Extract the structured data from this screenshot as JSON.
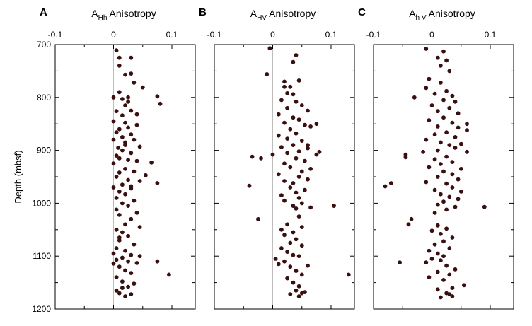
{
  "chart_data": [
    {
      "type": "scatter",
      "panel_label": "A",
      "title": {
        "main": "A",
        "sub": "Hh",
        "rest": " Anisotropy"
      },
      "ylabel": "Depth (mbsf)",
      "xlim": [
        -0.1,
        0.14
      ],
      "ylim": [
        1200,
        700
      ],
      "x_ticks": [
        -0.1,
        0,
        0.1
      ],
      "x_tick_labels": [
        "-0.1",
        "0",
        "0.1"
      ],
      "y_ticks": [
        700,
        800,
        900,
        1000,
        1100,
        1200
      ],
      "y_tick_labels": [
        "700",
        "800",
        "900",
        "1000",
        "1100",
        "1200"
      ],
      "zero_line": true,
      "points": [
        [
          0.005,
          711
        ],
        [
          0.01,
          725
        ],
        [
          0.03,
          725
        ],
        [
          0.01,
          740
        ],
        [
          0.02,
          757
        ],
        [
          0.03,
          755
        ],
        [
          0.035,
          772
        ],
        [
          0.05,
          781
        ],
        [
          0.075,
          798
        ],
        [
          0.08,
          812
        ],
        [
          0.0,
          800
        ],
        [
          0.015,
          803
        ],
        [
          0.025,
          808
        ],
        [
          0.02,
          815
        ],
        [
          0.03,
          825
        ],
        [
          0.04,
          832
        ],
        [
          0.005,
          826
        ],
        [
          0.015,
          834
        ],
        [
          0.0,
          845
        ],
        [
          0.02,
          848
        ],
        [
          0.04,
          852
        ],
        [
          0.025,
          857
        ],
        [
          0.01,
          860
        ],
        [
          0.005,
          866
        ],
        [
          0.03,
          870
        ],
        [
          0.015,
          875
        ],
        [
          0.0,
          880
        ],
        [
          0.035,
          880
        ],
        [
          0.02,
          890
        ],
        [
          0.008,
          895
        ],
        [
          0.045,
          893
        ],
        [
          0.015,
          900
        ],
        [
          0.03,
          905
        ],
        [
          0.005,
          910
        ],
        [
          0.01,
          915
        ],
        [
          0.025,
          918
        ],
        [
          0.04,
          920
        ],
        [
          0.0,
          925
        ],
        [
          0.065,
          923
        ],
        [
          0.02,
          935
        ],
        [
          0.035,
          940
        ],
        [
          0.01,
          942
        ],
        [
          0.055,
          947
        ],
        [
          0.005,
          950
        ],
        [
          0.025,
          956
        ],
        [
          0.045,
          958
        ],
        [
          0.075,
          962
        ],
        [
          0.015,
          965
        ],
        [
          0.0,
          970
        ],
        [
          0.03,
          972
        ],
        [
          0.01,
          978
        ],
        [
          0.02,
          983
        ],
        [
          0.005,
          990
        ],
        [
          0.035,
          995
        ],
        [
          0.015,
          1000
        ],
        [
          0.025,
          1005
        ],
        [
          0.005,
          1012
        ],
        [
          0.04,
          1018
        ],
        [
          0.01,
          1022
        ],
        [
          0.03,
          1030
        ],
        [
          0.02,
          1040
        ],
        [
          0.045,
          1045
        ],
        [
          0.005,
          1050
        ],
        [
          0.015,
          1055
        ],
        [
          0.025,
          1062
        ],
        [
          0.01,
          1070
        ],
        [
          0.035,
          1078
        ],
        [
          0.005,
          1085
        ],
        [
          0.02,
          1090
        ],
        [
          0.0,
          1095
        ],
        [
          0.03,
          1098
        ],
        [
          0.015,
          1103
        ],
        [
          0.005,
          1107
        ],
        [
          0.025,
          1110
        ],
        [
          0.0,
          1114
        ],
        [
          0.04,
          1113
        ],
        [
          0.075,
          1110
        ],
        [
          0.01,
          1120
        ],
        [
          0.02,
          1127
        ],
        [
          0.03,
          1132
        ],
        [
          0.095,
          1135
        ],
        [
          0.005,
          1140
        ],
        [
          0.015,
          1148
        ],
        [
          0.035,
          1152
        ],
        [
          0.025,
          1158
        ],
        [
          0.005,
          1165
        ],
        [
          0.01,
          1170
        ],
        [
          0.02,
          1176
        ],
        [
          0.03,
          1172
        ],
        [
          0.015,
          1160
        ],
        [
          0.045,
          1100
        ],
        [
          0.01,
          1065
        ],
        [
          0.03,
          968
        ],
        [
          0.02,
          885
        ],
        [
          0.01,
          790
        ],
        [
          0.025,
          800
        ]
      ]
    },
    {
      "type": "scatter",
      "panel_label": "B",
      "title": {
        "main": "A",
        "sub": "HV",
        "rest": " Anisotropy"
      },
      "xlim": [
        -0.1,
        0.14
      ],
      "ylim": [
        1200,
        700
      ],
      "x_ticks": [
        -0.1,
        0,
        0.1
      ],
      "x_tick_labels": [
        "-0.1",
        "0",
        "0.1"
      ],
      "y_ticks": [
        700,
        800,
        900,
        1000,
        1100,
        1200
      ],
      "zero_line": true,
      "points": [
        [
          -0.005,
          707
        ],
        [
          0.04,
          720
        ],
        [
          0.035,
          733
        ],
        [
          -0.01,
          756
        ],
        [
          0.02,
          770
        ],
        [
          0.045,
          768
        ],
        [
          0.03,
          780
        ],
        [
          0.025,
          792
        ],
        [
          0.035,
          794
        ],
        [
          0.015,
          805
        ],
        [
          0.04,
          808
        ],
        [
          0.05,
          815
        ],
        [
          0.025,
          820
        ],
        [
          0.06,
          825
        ],
        [
          0.01,
          832
        ],
        [
          0.035,
          838
        ],
        [
          0.045,
          842
        ],
        [
          0.02,
          848
        ],
        [
          0.055,
          852
        ],
        [
          0.075,
          850
        ],
        [
          0.065,
          855
        ],
        [
          0.03,
          860
        ],
        [
          0.04,
          868
        ],
        [
          0.01,
          872
        ],
        [
          0.025,
          878
        ],
        [
          0.05,
          882
        ],
        [
          0.035,
          890
        ],
        [
          0.015,
          894
        ],
        [
          0.06,
          896
        ],
        [
          0.045,
          902
        ],
        [
          0.025,
          905
        ],
        [
          0.08,
          903
        ],
        [
          0.0,
          908
        ],
        [
          -0.035,
          912
        ],
        [
          0.04,
          915
        ],
        [
          0.055,
          920
        ],
        [
          0.02,
          925
        ],
        [
          0.03,
          932
        ],
        [
          0.065,
          935
        ],
        [
          0.05,
          940
        ],
        [
          0.01,
          945
        ],
        [
          0.045,
          950
        ],
        [
          0.06,
          955
        ],
        [
          0.02,
          958
        ],
        [
          0.035,
          962
        ],
        [
          -0.04,
          967
        ],
        [
          0.03,
          970
        ],
        [
          0.055,
          975
        ],
        [
          0.04,
          980
        ],
        [
          0.015,
          985
        ],
        [
          0.045,
          990
        ],
        [
          0.02,
          995
        ],
        [
          0.05,
          1000
        ],
        [
          0.035,
          1005
        ],
        [
          0.105,
          1005
        ],
        [
          0.065,
          1008
        ],
        [
          0.04,
          1010
        ],
        [
          -0.025,
          1030
        ],
        [
          0.025,
          1040
        ],
        [
          0.05,
          1045
        ],
        [
          0.015,
          1050
        ],
        [
          0.035,
          1055
        ],
        [
          0.02,
          1060
        ],
        [
          0.04,
          1068
        ],
        [
          0.03,
          1075
        ],
        [
          0.05,
          1080
        ],
        [
          0.015,
          1085
        ],
        [
          0.025,
          1092
        ],
        [
          0.035,
          1098
        ],
        [
          0.005,
          1105
        ],
        [
          0.045,
          1100
        ],
        [
          0.02,
          1110
        ],
        [
          0.01,
          1115
        ],
        [
          0.03,
          1120
        ],
        [
          0.06,
          1118
        ],
        [
          0.04,
          1128
        ],
        [
          0.05,
          1135
        ],
        [
          0.13,
          1135
        ],
        [
          0.025,
          1142
        ],
        [
          0.035,
          1150
        ],
        [
          0.045,
          1157
        ],
        [
          0.04,
          1165
        ],
        [
          0.05,
          1170
        ],
        [
          0.045,
          1176
        ],
        [
          0.03,
          1172
        ],
        [
          0.055,
          1168
        ],
        [
          -0.02,
          915
        ],
        [
          0.075,
          908
        ],
        [
          0.06,
          890
        ],
        [
          0.02,
          780
        ],
        [
          0.045,
          1025
        ]
      ]
    },
    {
      "type": "scatter",
      "panel_label": "C",
      "title": {
        "main": "A",
        "sub": "h V",
        "rest": " Anisotropy"
      },
      "xlim": [
        -0.1,
        0.14
      ],
      "ylim": [
        1200,
        700
      ],
      "x_ticks": [
        -0.1,
        0,
        0.1
      ],
      "x_tick_labels": [
        "-0.1",
        "0",
        "0.1"
      ],
      "y_ticks": [
        700,
        800,
        900,
        1000,
        1100,
        1200
      ],
      "zero_line": true,
      "points": [
        [
          -0.01,
          708
        ],
        [
          0.02,
          713
        ],
        [
          0.01,
          725
        ],
        [
          0.025,
          730
        ],
        [
          0.015,
          740
        ],
        [
          0.03,
          750
        ],
        [
          -0.005,
          765
        ],
        [
          0.015,
          772
        ],
        [
          -0.01,
          782
        ],
        [
          0.025,
          788
        ],
        [
          0.005,
          793
        ],
        [
          0.035,
          797
        ],
        [
          -0.03,
          800
        ],
        [
          0.02,
          805
        ],
        [
          0.04,
          808
        ],
        [
          0.0,
          815
        ],
        [
          0.03,
          820
        ],
        [
          0.01,
          826
        ],
        [
          0.045,
          830
        ],
        [
          0.02,
          838
        ],
        [
          -0.005,
          843
        ],
        [
          0.035,
          848
        ],
        [
          0.06,
          850
        ],
        [
          0.01,
          855
        ],
        [
          0.045,
          857
        ],
        [
          0.06,
          862
        ],
        [
          0.025,
          866
        ],
        [
          0.005,
          870
        ],
        [
          0.04,
          875
        ],
        [
          -0.01,
          880
        ],
        [
          0.015,
          885
        ],
        [
          0.03,
          890
        ],
        [
          0.05,
          888
        ],
        [
          0.04,
          895
        ],
        [
          0.01,
          900
        ],
        [
          0.06,
          903
        ],
        [
          -0.015,
          903
        ],
        [
          -0.045,
          908
        ],
        [
          -0.045,
          913
        ],
        [
          0.025,
          912
        ],
        [
          0.005,
          917
        ],
        [
          0.035,
          922
        ],
        [
          0.015,
          926
        ],
        [
          -0.005,
          932
        ],
        [
          0.05,
          935
        ],
        [
          0.02,
          940
        ],
        [
          0.035,
          945
        ],
        [
          0.01,
          950
        ],
        [
          0.045,
          955
        ],
        [
          -0.01,
          960
        ],
        [
          0.025,
          963
        ],
        [
          -0.07,
          962
        ],
        [
          -0.08,
          968
        ],
        [
          0.035,
          970
        ],
        [
          0.005,
          975
        ],
        [
          0.05,
          978
        ],
        [
          0.015,
          983
        ],
        [
          0.03,
          988
        ],
        [
          0.045,
          992
        ],
        [
          0.02,
          997
        ],
        [
          0.01,
          1003
        ],
        [
          0.04,
          1007
        ],
        [
          0.09,
          1007
        ],
        [
          0.025,
          1012
        ],
        [
          0.005,
          1018
        ],
        [
          -0.035,
          1030
        ],
        [
          -0.04,
          1040
        ],
        [
          0.01,
          1042
        ],
        [
          0.025,
          1048
        ],
        [
          0.0,
          1052
        ],
        [
          0.015,
          1058
        ],
        [
          0.035,
          1065
        ],
        [
          0.02,
          1072
        ],
        [
          0.005,
          1078
        ],
        [
          0.03,
          1085
        ],
        [
          -0.005,
          1090
        ],
        [
          0.01,
          1095
        ],
        [
          0.02,
          1100
        ],
        [
          0.0,
          1105
        ],
        [
          0.015,
          1108
        ],
        [
          -0.055,
          1112
        ],
        [
          -0.01,
          1112
        ],
        [
          0.025,
          1118
        ],
        [
          0.04,
          1125
        ],
        [
          0.01,
          1130
        ],
        [
          0.03,
          1135
        ],
        [
          -0.005,
          1140
        ],
        [
          0.02,
          1145
        ],
        [
          0.055,
          1155
        ],
        [
          0.035,
          1160
        ],
        [
          0.01,
          1163
        ],
        [
          0.025,
          1170
        ],
        [
          0.035,
          1176
        ],
        [
          0.015,
          1178
        ],
        [
          0.03,
          1172
        ]
      ]
    }
  ]
}
